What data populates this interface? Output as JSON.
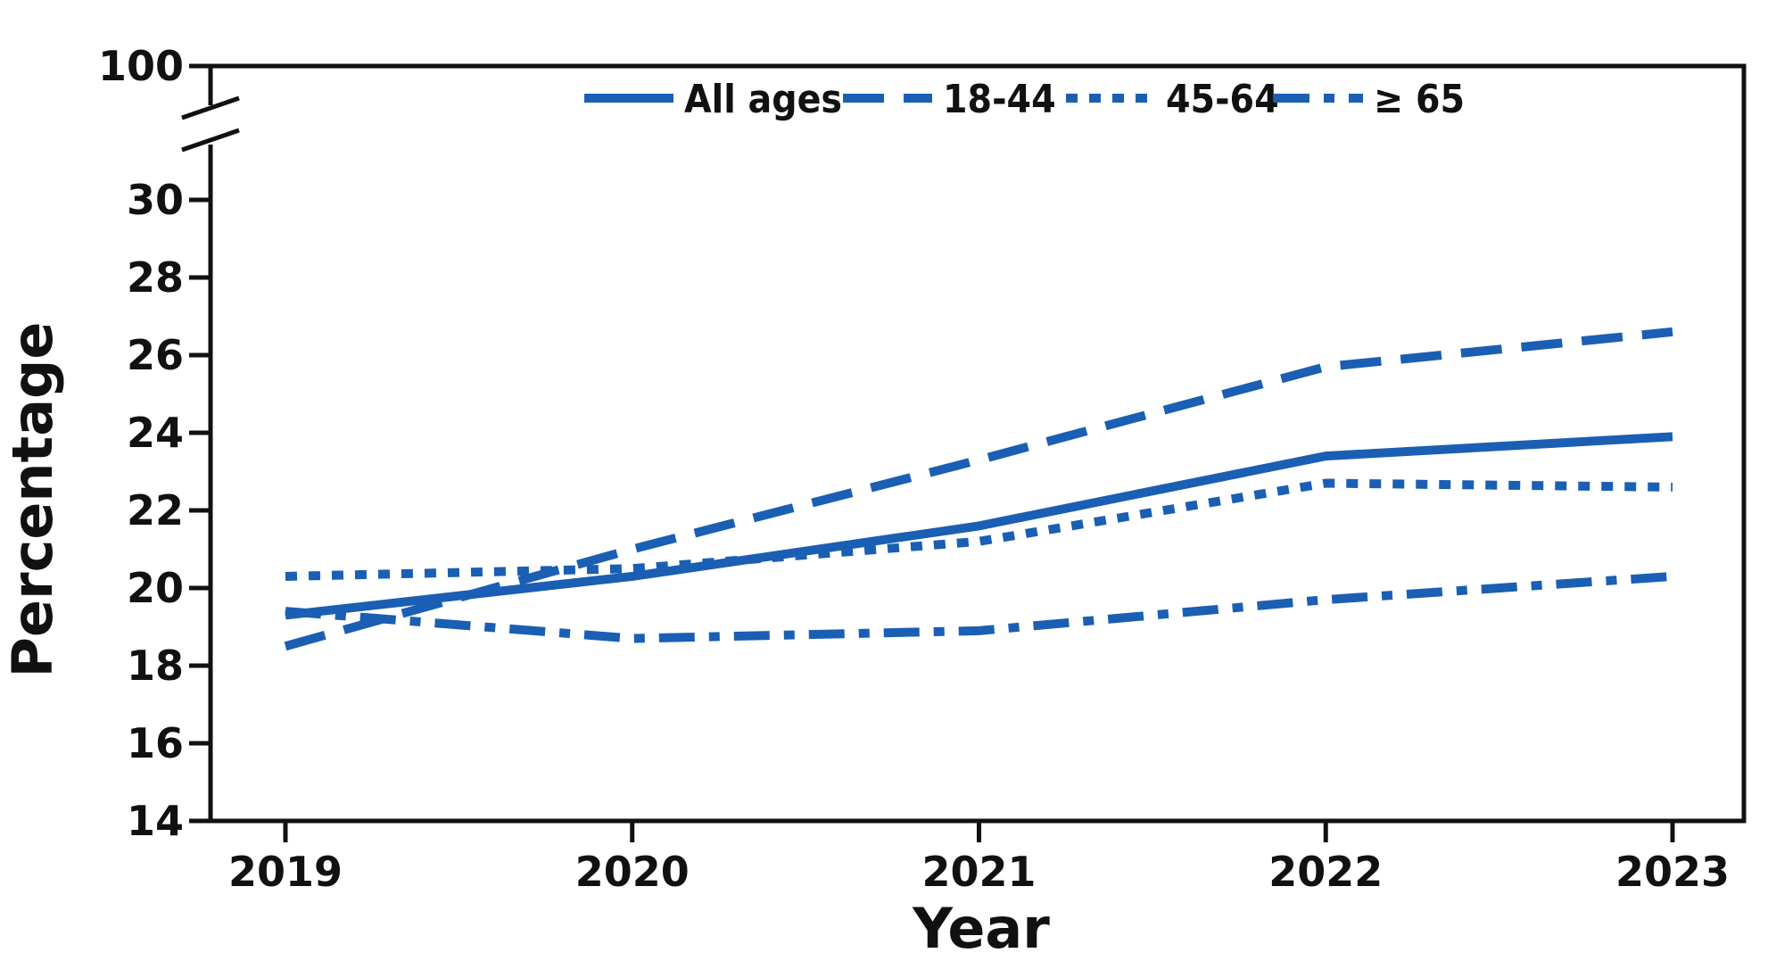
{
  "chart_data": {
    "type": "line",
    "x": [
      2019,
      2020,
      2021,
      2022,
      2023
    ],
    "x_tick_labels": [
      "2019",
      "2020",
      "2021",
      "2022",
      "2023"
    ],
    "y_tick_labels": [
      "14",
      "16",
      "18",
      "20",
      "22",
      "24",
      "26",
      "28",
      "30",
      "100"
    ],
    "xlabel": "Year",
    "ylabel": "Percentage",
    "ylim": [
      14,
      30
    ],
    "y_axis_break": {
      "from": 30,
      "to": 100
    },
    "grid": false,
    "legend_position": "top-center",
    "line_color": "#1a5fb4",
    "series": [
      {
        "name": "All ages",
        "style": "solid",
        "values": [
          19.3,
          20.3,
          21.6,
          23.4,
          23.9
        ]
      },
      {
        "name": "18-44",
        "style": "dashed",
        "values": [
          18.5,
          21.0,
          23.3,
          25.7,
          26.6
        ]
      },
      {
        "name": "45-64",
        "style": "dotted",
        "values": [
          20.3,
          20.5,
          21.2,
          22.7,
          22.6
        ]
      },
      {
        "name": "≥ 65",
        "style": "dashdot",
        "values": [
          19.4,
          18.7,
          18.9,
          19.7,
          20.3
        ]
      }
    ]
  }
}
